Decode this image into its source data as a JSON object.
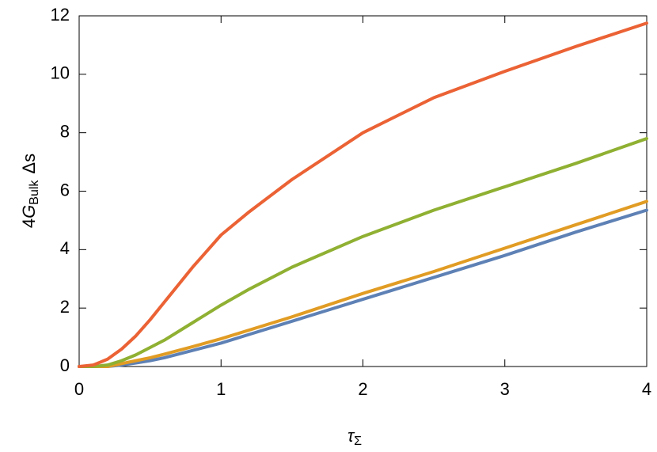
{
  "chart_data": {
    "type": "line",
    "xlabel": {
      "main": "τ",
      "sub": "Σ"
    },
    "ylabel": {
      "lead": "4",
      "main": "G",
      "sub": "Bulk",
      "tail": "Δs"
    },
    "x": [
      0,
      0.1,
      0.2,
      0.3,
      0.4,
      0.5,
      0.6,
      0.8,
      1,
      1.2,
      1.5,
      2,
      2.5,
      3,
      3.5,
      4
    ],
    "series": [
      {
        "color": "#5e81b5",
        "values": [
          0,
          0,
          0,
          0.05,
          0.12,
          0.2,
          0.3,
          0.55,
          0.8,
          1.1,
          1.55,
          2.3,
          3.05,
          3.8,
          4.6,
          5.35
        ]
      },
      {
        "color": "#e19c24",
        "values": [
          0,
          0,
          0,
          0.1,
          0.2,
          0.3,
          0.42,
          0.68,
          0.95,
          1.25,
          1.7,
          2.5,
          3.25,
          4.05,
          4.85,
          5.65
        ]
      },
      {
        "color": "#8fb032",
        "values": [
          0,
          0,
          0.05,
          0.2,
          0.4,
          0.65,
          0.9,
          1.5,
          2.1,
          2.65,
          3.4,
          4.45,
          5.35,
          6.15,
          6.95,
          7.8
        ]
      },
      {
        "color": "#eb6235",
        "values": [
          0,
          0.05,
          0.25,
          0.6,
          1.05,
          1.6,
          2.2,
          3.4,
          4.5,
          5.3,
          6.4,
          8.0,
          9.2,
          10.1,
          10.95,
          11.75
        ]
      }
    ],
    "xlim": [
      0,
      4
    ],
    "xticks": [
      0,
      1,
      2,
      3,
      4
    ],
    "ylim": [
      0,
      12
    ],
    "yticks": [
      0,
      2,
      4,
      6,
      8,
      10,
      12
    ]
  }
}
